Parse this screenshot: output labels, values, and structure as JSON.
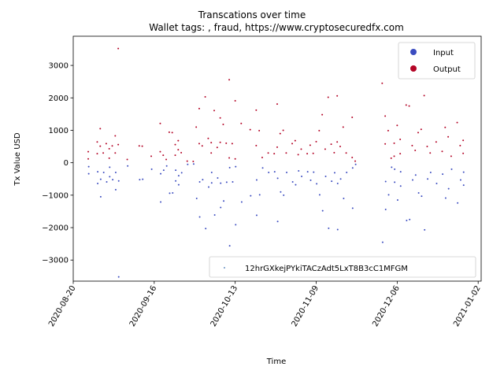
{
  "chart_data": {
    "type": "scatter",
    "title": "Transcations over time",
    "subtitle": "Wallet tags: , fraud, https://www.cryptosecuredfx.com",
    "xlabel": "Time",
    "ylabel": "Tx Value USD",
    "x_range": [
      "2020-08-20",
      "2021-01-03"
    ],
    "ylim": [
      -3650,
      3900
    ],
    "x_ticks": [
      "2020-08-20",
      "2020-09-16",
      "2020-10-13",
      "2020-11-09",
      "2020-12-06",
      "2021-01-02"
    ],
    "y_ticks": [
      3000,
      2000,
      1000,
      0,
      -1000,
      -2000,
      -3000
    ],
    "y_tick_labels": [
      "3000",
      "2000",
      "1000",
      "0",
      "−1000",
      "−2000",
      "−3000"
    ],
    "legend_color": {
      "placement": "upper right",
      "entries": [
        {
          "label": "Input",
          "color": "#3b4cc0"
        },
        {
          "label": "Output",
          "color": "#b40426"
        }
      ]
    },
    "legend_wallet": {
      "placement": "lower right",
      "label": "12hrGXkejPYkiTACzAdt5LxT8B3cC1MFGM",
      "marker_color": "#3b6fb0"
    },
    "grid": false,
    "output_color": "#b40426",
    "input_color": "#3b4cc0",
    "points": [
      [
        "2020-08-25",
        340
      ],
      [
        "2020-08-25",
        120
      ],
      [
        "2020-08-28",
        640
      ],
      [
        "2020-08-28",
        280
      ],
      [
        "2020-08-29",
        1050
      ],
      [
        "2020-08-29",
        510
      ],
      [
        "2020-08-30",
        300
      ],
      [
        "2020-08-31",
        590
      ],
      [
        "2020-09-01",
        430
      ],
      [
        "2020-09-01",
        140
      ],
      [
        "2020-09-02",
        520
      ],
      [
        "2020-09-03",
        830
      ],
      [
        "2020-09-03",
        300
      ],
      [
        "2020-09-04",
        3520
      ],
      [
        "2020-09-04",
        560
      ],
      [
        "2020-09-07",
        100
      ],
      [
        "2020-09-11",
        520
      ],
      [
        "2020-09-12",
        510
      ],
      [
        "2020-09-15",
        200
      ],
      [
        "2020-09-18",
        340
      ],
      [
        "2020-09-18",
        1210
      ],
      [
        "2020-09-19",
        230
      ],
      [
        "2020-09-20",
        100
      ],
      [
        "2020-09-21",
        940
      ],
      [
        "2020-09-22",
        930
      ],
      [
        "2020-09-23",
        560
      ],
      [
        "2020-09-23",
        230
      ],
      [
        "2020-09-24",
        680
      ],
      [
        "2020-09-24",
        400
      ],
      [
        "2020-09-25",
        310
      ],
      [
        "2020-09-27",
        50
      ],
      [
        "2020-09-29",
        40
      ],
      [
        "2020-09-30",
        1100
      ],
      [
        "2020-10-01",
        1670
      ],
      [
        "2020-10-01",
        590
      ],
      [
        "2020-10-02",
        520
      ],
      [
        "2020-10-03",
        2030
      ],
      [
        "2020-10-04",
        750
      ],
      [
        "2020-10-05",
        620
      ],
      [
        "2020-10-05",
        300
      ],
      [
        "2020-10-06",
        1610
      ],
      [
        "2020-10-07",
        470
      ],
      [
        "2020-10-08",
        1380
      ],
      [
        "2020-10-08",
        630
      ],
      [
        "2020-10-09",
        1180
      ],
      [
        "2020-10-10",
        600
      ],
      [
        "2020-10-11",
        2560
      ],
      [
        "2020-10-11",
        150
      ],
      [
        "2020-10-12",
        590
      ],
      [
        "2020-10-13",
        1910
      ],
      [
        "2020-10-13",
        120
      ],
      [
        "2020-10-15",
        1210
      ],
      [
        "2020-10-18",
        1020
      ],
      [
        "2020-10-20",
        1620
      ],
      [
        "2020-10-20",
        530
      ],
      [
        "2020-10-21",
        990
      ],
      [
        "2020-10-22",
        160
      ],
      [
        "2020-10-24",
        300
      ],
      [
        "2020-10-26",
        280
      ],
      [
        "2020-10-27",
        1810
      ],
      [
        "2020-10-27",
        480
      ],
      [
        "2020-10-28",
        900
      ],
      [
        "2020-10-29",
        1000
      ],
      [
        "2020-10-30",
        300
      ],
      [
        "2020-11-01",
        590
      ],
      [
        "2020-11-02",
        680
      ],
      [
        "2020-11-03",
        250
      ],
      [
        "2020-11-04",
        420
      ],
      [
        "2020-11-06",
        280
      ],
      [
        "2020-11-07",
        540
      ],
      [
        "2020-11-08",
        290
      ],
      [
        "2020-11-09",
        650
      ],
      [
        "2020-11-10",
        990
      ],
      [
        "2020-11-11",
        1480
      ],
      [
        "2020-11-12",
        420
      ],
      [
        "2020-11-13",
        2020
      ],
      [
        "2020-11-14",
        570
      ],
      [
        "2020-11-15",
        310
      ],
      [
        "2020-11-16",
        2060
      ],
      [
        "2020-11-16",
        640
      ],
      [
        "2020-11-17",
        500
      ],
      [
        "2020-11-18",
        1100
      ],
      [
        "2020-11-19",
        300
      ],
      [
        "2020-11-21",
        1400
      ],
      [
        "2020-11-21",
        160
      ],
      [
        "2020-11-22",
        50
      ],
      [
        "2020-12-01",
        2450
      ],
      [
        "2020-12-02",
        1440
      ],
      [
        "2020-12-02",
        580
      ],
      [
        "2020-12-03",
        990
      ],
      [
        "2020-12-04",
        140
      ],
      [
        "2020-12-05",
        200
      ],
      [
        "2020-12-05",
        600
      ],
      [
        "2020-12-06",
        1150
      ],
      [
        "2020-12-07",
        280
      ],
      [
        "2020-12-07",
        720
      ],
      [
        "2020-12-09",
        1780
      ],
      [
        "2020-12-10",
        1750
      ],
      [
        "2020-12-11",
        530
      ],
      [
        "2020-12-12",
        380
      ],
      [
        "2020-12-13",
        930
      ],
      [
        "2020-12-14",
        1030
      ],
      [
        "2020-12-15",
        2070
      ],
      [
        "2020-12-16",
        500
      ],
      [
        "2020-12-17",
        300
      ],
      [
        "2020-12-19",
        640
      ],
      [
        "2020-12-21",
        350
      ],
      [
        "2020-12-22",
        1090
      ],
      [
        "2020-12-23",
        800
      ],
      [
        "2020-12-24",
        200
      ],
      [
        "2020-12-26",
        1240
      ],
      [
        "2020-12-27",
        530
      ],
      [
        "2020-12-28",
        690
      ],
      [
        "2020-12-28",
        290
      ]
    ]
  }
}
